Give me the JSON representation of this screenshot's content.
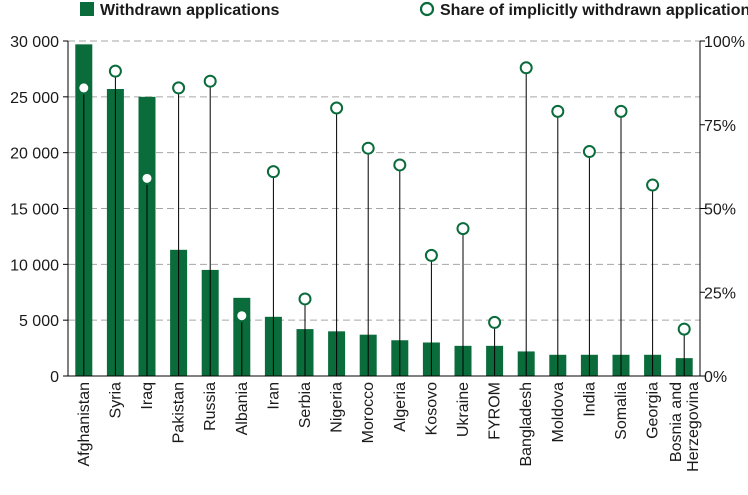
{
  "colors": {
    "bar": "#0a6b3b",
    "marker_stroke": "#0a6b3b",
    "marker_fill": "#ffffff",
    "grid": "#a6a6a6",
    "stem": "#000000"
  },
  "legend": {
    "bars_label": "Withdrawn applications",
    "markers_label": "Share of implicitly withdrawn applications"
  },
  "chart_data": {
    "type": "bar",
    "categories": [
      "Afghanistan",
      "Syria",
      "Iraq",
      "Pakistan",
      "Russia",
      "Albania",
      "Iran",
      "Serbia",
      "Nigeria",
      "Morocco",
      "Algeria",
      "Kosovo",
      "Ukraine",
      "FYROM",
      "Bangladesh",
      "Moldova",
      "India",
      "Somalia",
      "Georgia",
      "Bosnia and Herzegovina"
    ],
    "category_label_lines": [
      [
        "Afghanistan"
      ],
      [
        "Syria"
      ],
      [
        "Iraq"
      ],
      [
        "Pakistan"
      ],
      [
        "Russia"
      ],
      [
        "Albania"
      ],
      [
        "Iran"
      ],
      [
        "Serbia"
      ],
      [
        "Nigeria"
      ],
      [
        "Morocco"
      ],
      [
        "Algeria"
      ],
      [
        "Kosovo"
      ],
      [
        "Ukraine"
      ],
      [
        "FYROM"
      ],
      [
        "Bangladesh"
      ],
      [
        "Moldova"
      ],
      [
        "India"
      ],
      [
        "Somalia"
      ],
      [
        "Georgia"
      ],
      [
        "Bosnia and",
        "Herzegovina"
      ]
    ],
    "series": [
      {
        "name": "Withdrawn applications",
        "type": "bar",
        "axis": "left",
        "values": [
          29700,
          25700,
          25000,
          11300,
          9500,
          7000,
          5300,
          4200,
          4000,
          3700,
          3200,
          3000,
          2700,
          2700,
          2200,
          1900,
          1900,
          1900,
          1900,
          1600
        ]
      },
      {
        "name": "Share of implicitly withdrawn applications",
        "type": "marker",
        "axis": "right",
        "values": [
          0.86,
          0.91,
          0.59,
          0.86,
          0.88,
          0.18,
          0.61,
          0.23,
          0.8,
          0.68,
          0.63,
          0.36,
          0.44,
          0.16,
          0.92,
          0.79,
          0.67,
          0.79,
          0.57,
          0.14
        ]
      }
    ],
    "y_left": {
      "ylim": [
        0,
        30000
      ],
      "ticks": [
        "0",
        "5 000",
        "10 000",
        "15 000",
        "20 000",
        "25 000",
        "30 000"
      ]
    },
    "y_right": {
      "ylim": [
        0,
        1
      ],
      "ticks": [
        "0%",
        "25%",
        "50%",
        "75%",
        "100%"
      ]
    },
    "grid": true,
    "legend_position": "top"
  }
}
